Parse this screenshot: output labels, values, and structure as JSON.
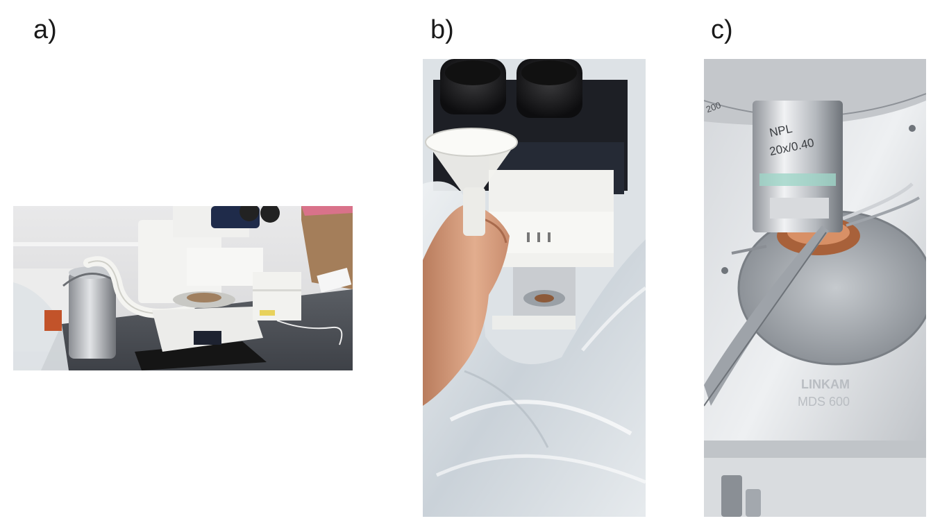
{
  "panels": [
    {
      "label": "a)",
      "description_icon": "microscope-with-dewar-photo"
    },
    {
      "label": "b)",
      "description_icon": "funnel-pouring-photo"
    },
    {
      "label": "c)",
      "description_icon": "objective-and-stage-photo"
    }
  ],
  "objective_engraving": {
    "line1": "NPL",
    "line2": "20x/0.40"
  },
  "stage_engraving": {
    "line1": "LINKAM",
    "line2": "MDS 600"
  },
  "ring_engraving": "200"
}
